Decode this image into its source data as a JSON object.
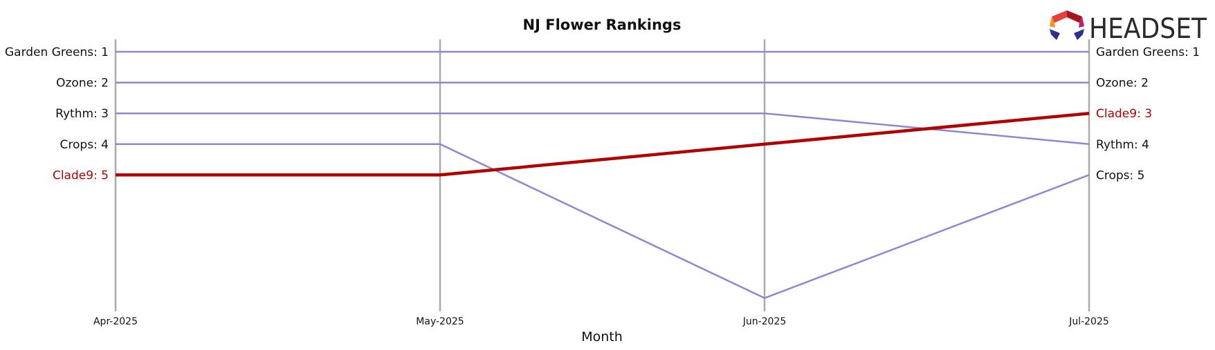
{
  "chart_data": {
    "type": "line",
    "title": "NJ Flower Rankings",
    "xlabel": "Month",
    "ylabel": "",
    "x": [
      "Apr-2025",
      "May-2025",
      "Jun-2025",
      "Jul-2025"
    ],
    "y_inverted": true,
    "ylim": [
      1,
      9
    ],
    "grid": "vertical lines at each month",
    "highlight_color": "#b20000",
    "default_color": "#8e86d4",
    "series": [
      {
        "name": "Garden Greens",
        "values": [
          1,
          1,
          1,
          1
        ],
        "highlight": false
      },
      {
        "name": "Ozone",
        "values": [
          2,
          2,
          2,
          2
        ],
        "highlight": false
      },
      {
        "name": "Rythm",
        "values": [
          3,
          3,
          3,
          4
        ],
        "highlight": false
      },
      {
        "name": "Crops",
        "values": [
          4,
          4,
          9,
          5
        ],
        "highlight": false
      },
      {
        "name": "Clade9",
        "values": [
          5,
          5,
          4,
          3
        ],
        "highlight": true
      }
    ]
  },
  "logo": {
    "text": "HEADSET"
  }
}
